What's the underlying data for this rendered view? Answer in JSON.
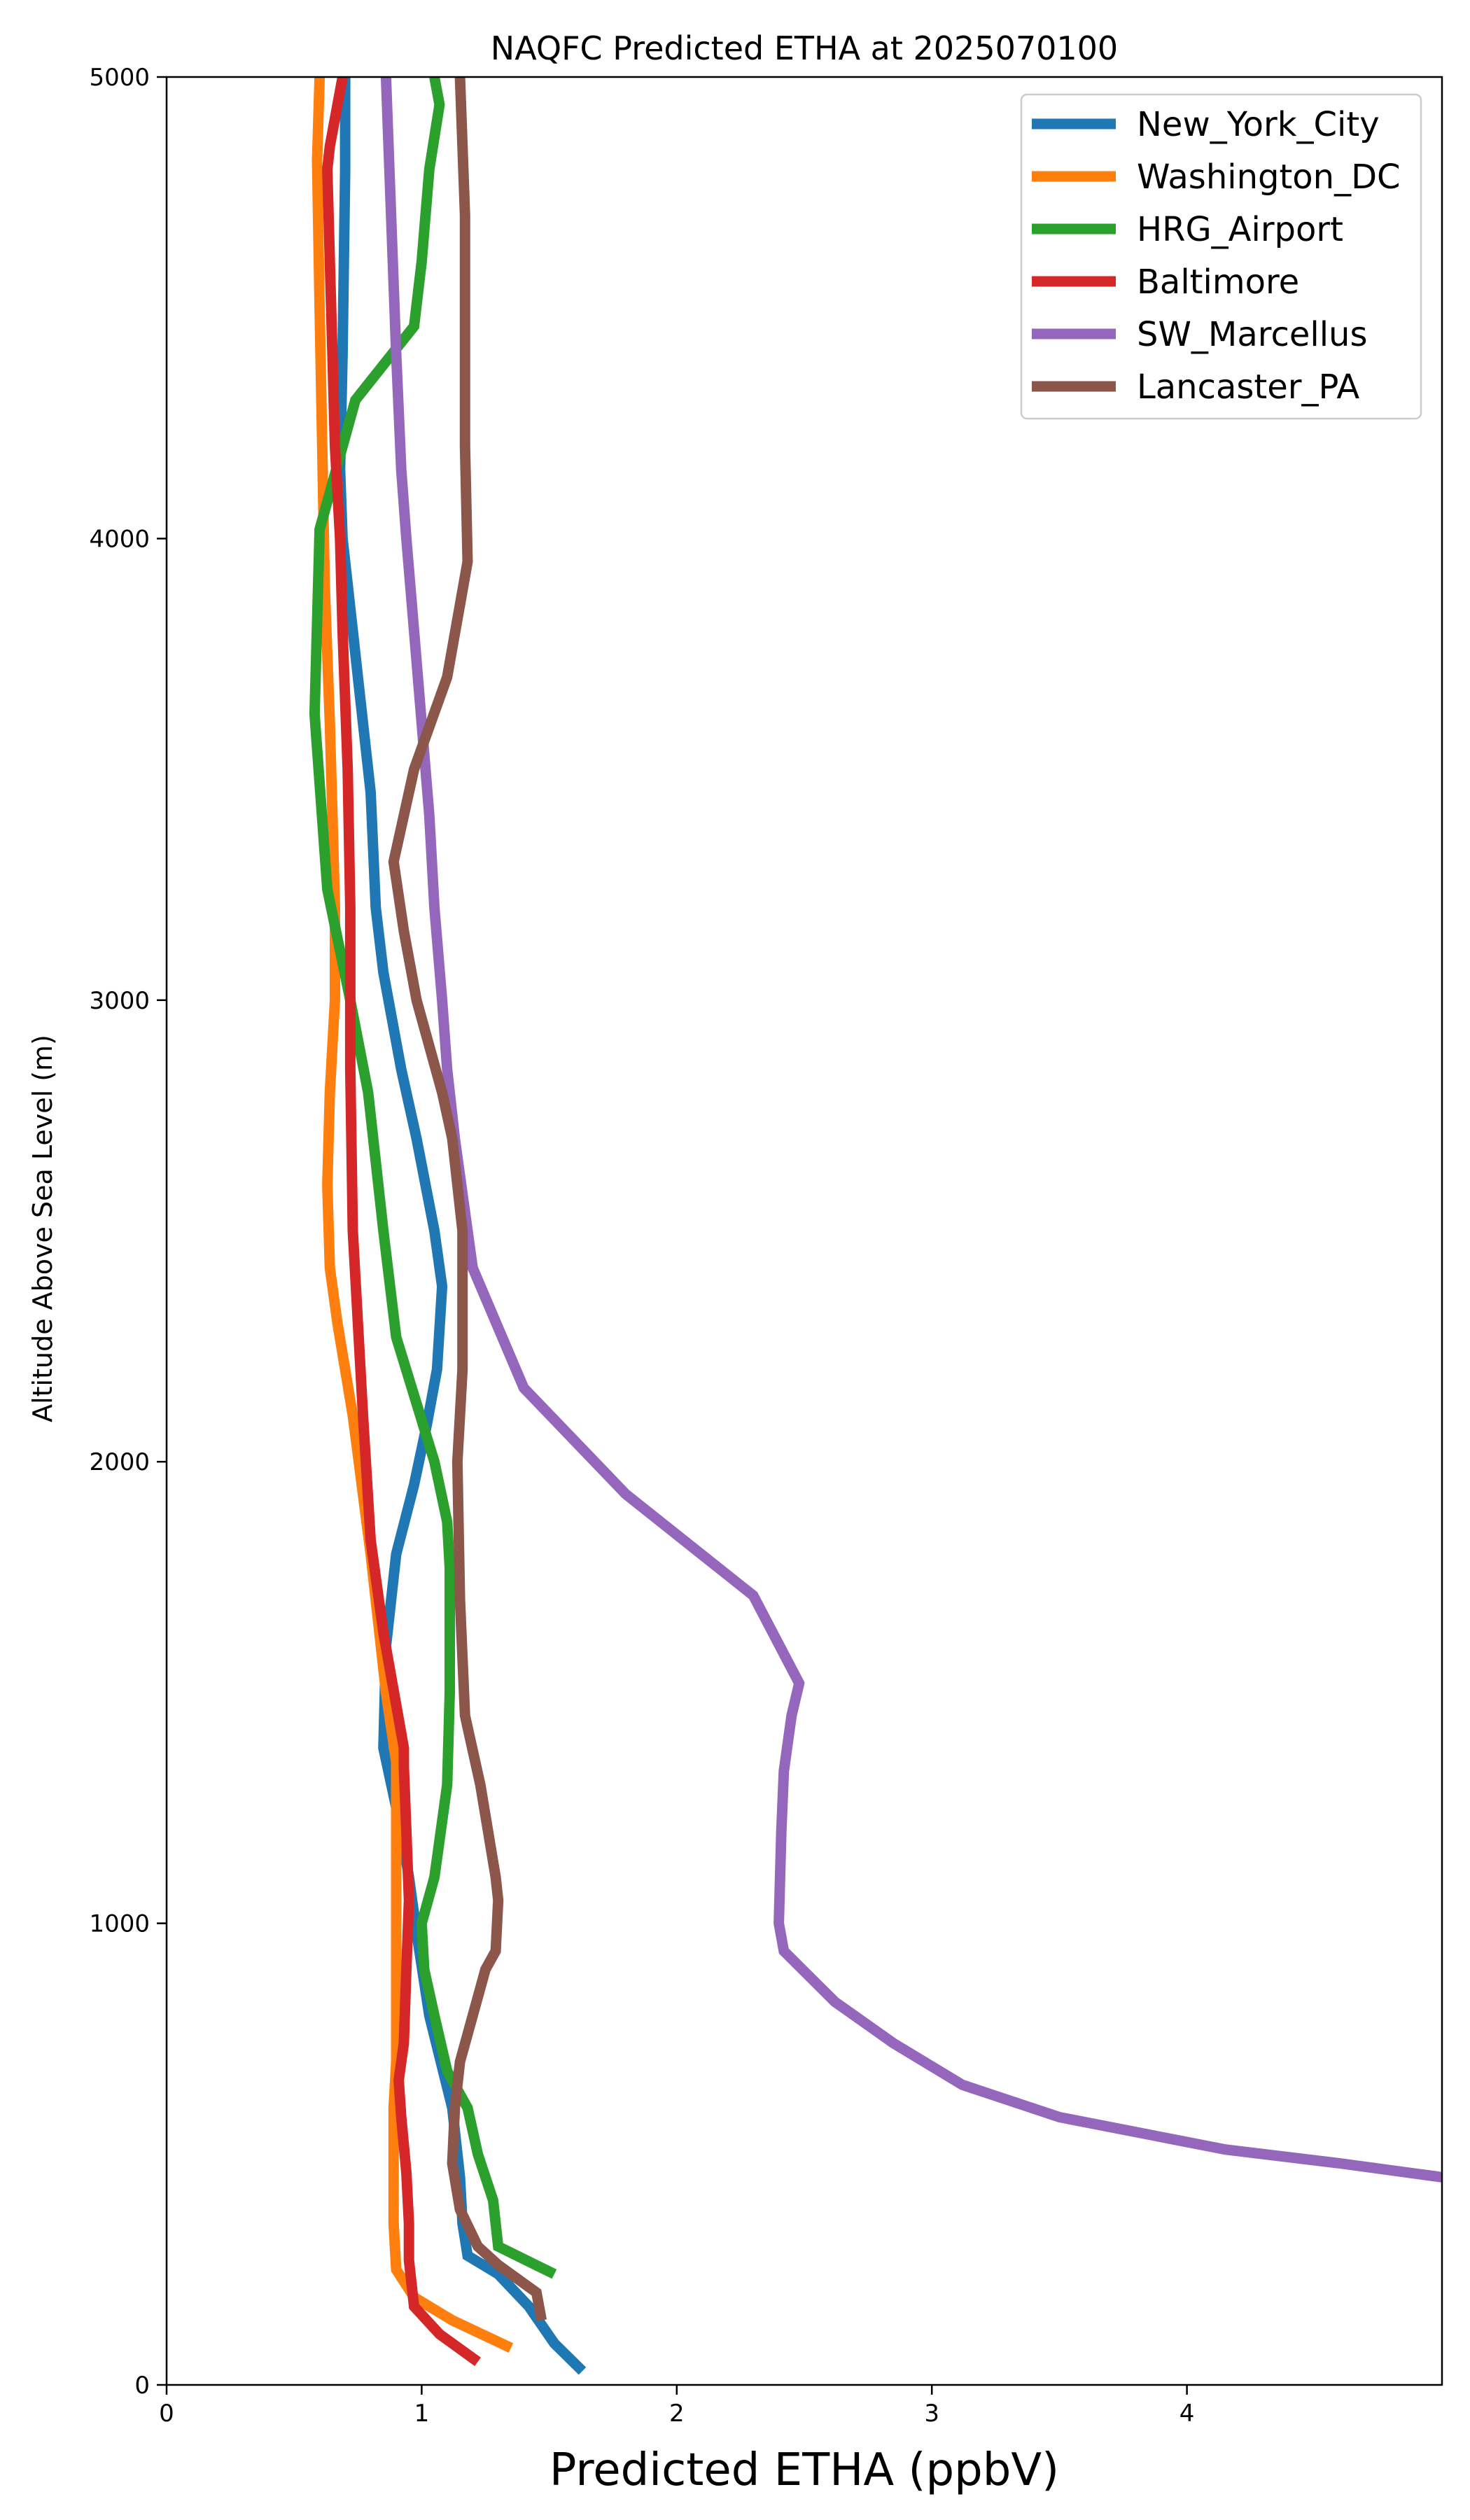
{
  "chart_data": {
    "type": "line",
    "title": "NAQFC Predicted ETHA at 2025070100",
    "xlabel": "Predicted ETHA (ppbV)",
    "ylabel": "Altitude Above Sea Level (m)",
    "xlim": [
      0,
      5
    ],
    "ylim": [
      0,
      5000
    ],
    "xticks": [
      0,
      1,
      2,
      3,
      4
    ],
    "yticks": [
      0,
      1000,
      2000,
      3000,
      4000,
      5000
    ],
    "grid": false,
    "legend_position": "top-right",
    "series": [
      {
        "name": "New_York_City",
        "color": "#1f77b4",
        "x": [
          1.63,
          1.52,
          1.42,
          1.3,
          1.18,
          1.16,
          1.15,
          1.12,
          1.03,
          0.98,
          0.95,
          0.92,
          0.85,
          0.86,
          0.9,
          0.97,
          1.02,
          1.06,
          1.08,
          1.05,
          0.98,
          0.92,
          0.85,
          0.82,
          0.8,
          0.73,
          0.69,
          0.68,
          0.69,
          0.7,
          0.7
        ],
        "y": [
          30,
          90,
          170,
          240,
          280,
          350,
          450,
          600,
          800,
          980,
          1100,
          1200,
          1380,
          1600,
          1800,
          1950,
          2080,
          2200,
          2380,
          2500,
          2700,
          2850,
          3060,
          3200,
          3450,
          3800,
          4000,
          4150,
          4400,
          4800,
          5000
        ]
      },
      {
        "name": "Washington_DC",
        "color": "#ff7f0e",
        "x": [
          1.35,
          1.12,
          0.97,
          0.9,
          0.89,
          0.89,
          0.9,
          0.9,
          0.9,
          0.9,
          0.9,
          0.9,
          0.86,
          0.8,
          0.73,
          0.67,
          0.64,
          0.63,
          0.64,
          0.66,
          0.66,
          0.65,
          0.64,
          0.62,
          0.61,
          0.6,
          0.59,
          0.6
        ],
        "y": [
          80,
          140,
          190,
          250,
          350,
          600,
          700,
          850,
          1000,
          1150,
          1250,
          1350,
          1500,
          1800,
          2100,
          2300,
          2420,
          2600,
          2800,
          3000,
          3200,
          3400,
          3600,
          3900,
          4200,
          4500,
          4820,
          5000
        ]
      },
      {
        "name": "HRG_Airport",
        "color": "#2ca02c",
        "x": [
          1.52,
          1.3,
          1.28,
          1.22,
          1.18,
          1.1,
          1.05,
          1.01,
          1.0,
          1.05,
          1.1,
          1.11,
          1.11,
          1.1,
          1.05,
          0.9,
          0.85,
          0.79,
          0.72,
          0.63,
          0.58,
          0.6,
          0.74,
          0.97,
          1.0,
          1.03,
          1.07,
          1.05
        ],
        "y": [
          240,
          300,
          400,
          500,
          600,
          680,
          800,
          900,
          1000,
          1100,
          1300,
          1500,
          1770,
          1870,
          2000,
          2270,
          2500,
          2800,
          3000,
          3240,
          3620,
          4020,
          4300,
          4460,
          4600,
          4800,
          4940,
          5000
        ]
      },
      {
        "name": "Baltimore",
        "color": "#d62728",
        "x": [
          1.22,
          1.07,
          0.97,
          0.95,
          0.95,
          0.94,
          0.92,
          0.91,
          0.93,
          0.94,
          0.95,
          0.94,
          0.93,
          0.93,
          0.85,
          0.8,
          0.77,
          0.73,
          0.72,
          0.72,
          0.71,
          0.69,
          0.68,
          0.66,
          0.65,
          0.64,
          0.63,
          0.64,
          0.69
        ],
        "y": [
          50,
          110,
          170,
          270,
          350,
          460,
          580,
          660,
          740,
          900,
          1050,
          1200,
          1340,
          1380,
          1630,
          1830,
          2100,
          2500,
          2850,
          3200,
          3500,
          3800,
          4000,
          4200,
          4400,
          4600,
          4800,
          4850,
          5000
        ]
      },
      {
        "name": "SW_Marcellus",
        "color": "#9467bd",
        "x": [
          5.0,
          4.6,
          4.15,
          3.5,
          3.12,
          2.85,
          2.62,
          2.42,
          2.4,
          2.41,
          2.42,
          2.45,
          2.48,
          2.3,
          1.8,
          1.4,
          1.2,
          1.13,
          1.1,
          1.08,
          1.05,
          1.03,
          1.0,
          0.97,
          0.94,
          0.92,
          0.9,
          0.88,
          0.86
        ],
        "y": [
          450,
          480,
          510,
          580,
          650,
          740,
          830,
          940,
          1000,
          1200,
          1330,
          1450,
          1520,
          1710,
          1930,
          2160,
          2420,
          2700,
          2850,
          3000,
          3200,
          3400,
          3600,
          3800,
          4000,
          4150,
          4400,
          4700,
          5000
        ]
      },
      {
        "name": "Lancaster_PA",
        "color": "#8c564b",
        "x": [
          1.47,
          1.45,
          1.3,
          1.22,
          1.15,
          1.12,
          1.13,
          1.15,
          1.2,
          1.25,
          1.29,
          1.3,
          1.29,
          1.23,
          1.17,
          1.15,
          1.14,
          1.16,
          1.16,
          1.12,
          1.08,
          0.98,
          0.93,
          0.89,
          0.97,
          1.1,
          1.18,
          1.17,
          1.17,
          1.17,
          1.16,
          1.15
        ],
        "y": [
          140,
          200,
          260,
          300,
          380,
          480,
          600,
          700,
          800,
          900,
          940,
          1050,
          1100,
          1300,
          1450,
          1700,
          2000,
          2200,
          2500,
          2700,
          2800,
          3000,
          3150,
          3300,
          3500,
          3700,
          3950,
          4200,
          4400,
          4700,
          4850,
          5000
        ]
      }
    ]
  }
}
